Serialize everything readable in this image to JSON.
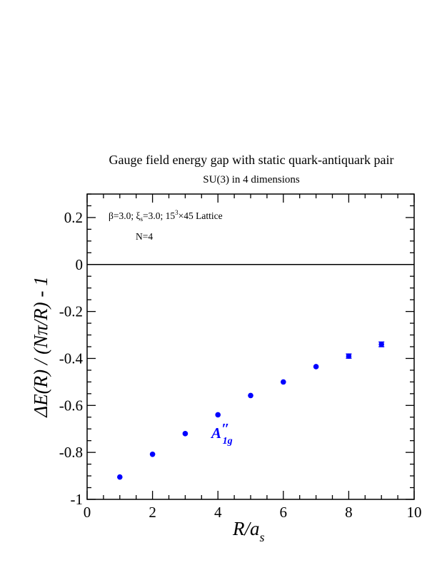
{
  "chart_data": {
    "type": "scatter",
    "title": "Gauge field energy gap with static quark-antiquark pair",
    "subtitle": "SU(3) in 4 dimensions",
    "xlabel": {
      "main": "R/a",
      "sub": "s"
    },
    "ylabel": "ΔE(R) / (Nπ/R) - 1",
    "xlim": [
      0,
      10
    ],
    "ylim": [
      -1,
      0.3
    ],
    "x_ticks": [
      0,
      2,
      4,
      6,
      8,
      10
    ],
    "x_tick_labels": [
      "0",
      "2",
      "4",
      "6",
      "8",
      "10"
    ],
    "y_ticks": [
      -1,
      -0.8,
      -0.6,
      -0.4,
      -0.2,
      0,
      0.2
    ],
    "y_tick_labels": [
      "-1",
      "-0.8",
      "-0.6",
      "-0.4",
      "-0.2",
      "0",
      "0.2"
    ],
    "reference_line_y": 0,
    "grid": false,
    "annotations": {
      "params_line": {
        "beta": "β=3.0;",
        "xi": "ξ",
        "xi_sub": "s",
        "xi_rest": "=3.0;",
        "lattice_base": "15",
        "lattice_exp": "3",
        "lattice_rest": "×45 Lattice"
      },
      "n_label": "N=4"
    },
    "series": [
      {
        "label": {
          "main": "A",
          "prime": "″",
          "sub": "1g"
        },
        "color": "#0000ff",
        "x": [
          1,
          2,
          3,
          4,
          5,
          6,
          7,
          8,
          9
        ],
        "y": [
          -0.905,
          -0.808,
          -0.72,
          -0.64,
          -0.558,
          -0.5,
          -0.435,
          -0.39,
          -0.34
        ],
        "err": [
          0.004,
          0.004,
          0.004,
          0.005,
          0.005,
          0.005,
          0.006,
          0.009,
          0.01
        ]
      }
    ]
  }
}
